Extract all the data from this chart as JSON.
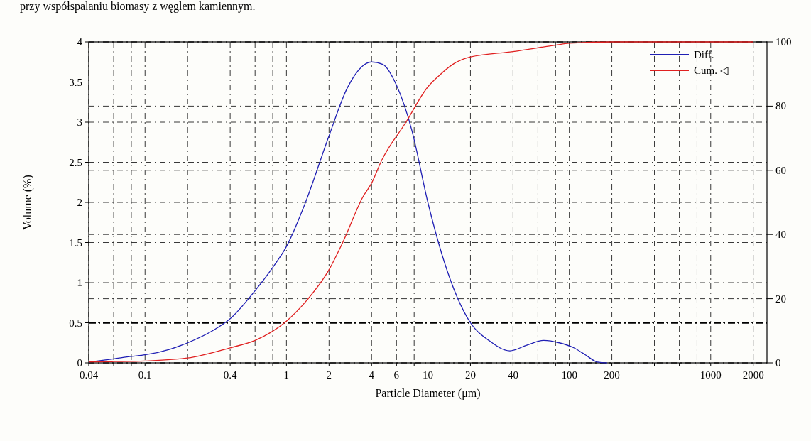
{
  "chart_data": {
    "type": "line",
    "annotations": [
      "przy współspalaniu biomasy z węglem kamiennym."
    ],
    "xlabel": "Particle Diameter (μm)",
    "ylabel": "Volume (%)",
    "log": "x",
    "grid": true,
    "legend": "top right",
    "xlim": [
      0.04,
      2500
    ],
    "xticks": [
      0.04,
      {
        "value": 0.06,
        "label": null
      },
      {
        "value": 0.08,
        "label": null
      },
      0.1,
      {
        "value": 0.2,
        "label": null
      },
      0.4,
      {
        "value": 0.6,
        "label": null
      },
      {
        "value": 0.8,
        "label": null
      },
      1,
      2,
      4,
      6,
      {
        "value": 8,
        "label": null
      },
      10,
      20,
      40,
      {
        "value": 60,
        "label": null
      },
      {
        "value": 80,
        "label": null
      },
      100,
      200,
      {
        "value": 400,
        "label": null
      },
      {
        "value": 600,
        "label": null
      },
      {
        "value": 800,
        "label": null
      },
      1000,
      2000
    ],
    "ylim": [
      0,
      4
    ],
    "yticks": [
      0,
      0.5,
      1,
      1.5,
      2,
      2.5,
      3,
      3.5,
      4
    ],
    "y2lim": [
      0,
      100
    ],
    "y2ticks": [
      0,
      20,
      40,
      60,
      80,
      100
    ],
    "ref_lines": [
      {
        "axis": "y",
        "value": 0.5,
        "line_style": "dashed"
      }
    ],
    "series": [
      {
        "name": "Diff.",
        "color": "#1f1fb4",
        "x": [
          0.04,
          0.06,
          0.08,
          0.1,
          0.15,
          0.2,
          0.3,
          0.4,
          0.6,
          0.8,
          1,
          1.35,
          2,
          2.7,
          4,
          4.8,
          6,
          7.7,
          10,
          13,
          20,
          27,
          38,
          50,
          66,
          85,
          107,
          130,
          158,
          185
        ],
        "values": [
          0.01,
          0.05,
          0.08,
          0.1,
          0.17,
          0.25,
          0.4,
          0.55,
          0.9,
          1.19,
          1.45,
          1.98,
          2.83,
          3.43,
          3.75,
          3.72,
          3.46,
          2.9,
          2.0,
          1.27,
          0.5,
          0.28,
          0.15,
          0.22,
          0.28,
          0.25,
          0.19,
          0.1,
          0.01,
          0.0
        ]
      },
      {
        "name": "Cum. ◁",
        "color": "#e02020",
        "axis": "y2",
        "x": [
          0.04,
          0.06,
          0.1,
          0.2,
          0.4,
          0.6,
          1,
          1.4,
          2,
          2.5,
          3.5,
          4,
          4.7,
          7,
          10,
          12,
          15,
          20,
          40,
          80,
          100,
          200,
          500,
          1000,
          2000
        ],
        "values": [
          0.3,
          0.4,
          0.6,
          1.5,
          4.7,
          7,
          13,
          19.6,
          29,
          37.5,
          52,
          56,
          63,
          75,
          86,
          89.5,
          93,
          95.3,
          97,
          99,
          99.6,
          100,
          100,
          100,
          100
        ]
      }
    ]
  }
}
